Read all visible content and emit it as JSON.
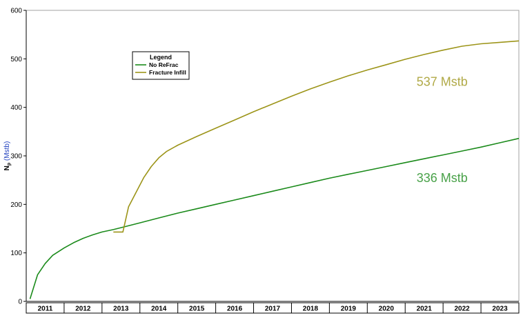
{
  "chart_data": {
    "type": "line",
    "ylabel": {
      "main": "N",
      "sub": "p",
      "unit": "(Mstb)"
    },
    "ylim": [
      0,
      600
    ],
    "yticks": [
      0,
      100,
      200,
      300,
      400,
      500,
      600
    ],
    "xlim": [
      2011.0,
      2024.0
    ],
    "x_tick_labels": [
      "2011",
      "2012",
      "2013",
      "2014",
      "2015",
      "2016",
      "2017",
      "2018",
      "2019",
      "2020",
      "2021",
      "2022",
      "2023"
    ],
    "x_tick_centers": [
      2011.5,
      2012.5,
      2013.5,
      2014.5,
      2015.5,
      2016.5,
      2017.5,
      2018.5,
      2019.5,
      2020.5,
      2021.5,
      2022.5,
      2023.5
    ],
    "grid": false,
    "legend": {
      "title": "Legend",
      "placement": "upper-left"
    },
    "series": [
      {
        "name": "No ReFrac",
        "color": "#1a8a1a",
        "x": [
          2011.1,
          2011.2,
          2011.3,
          2011.5,
          2011.7,
          2012.0,
          2012.25,
          2012.5,
          2012.75,
          2013.0,
          2013.3,
          2013.5,
          2014.0,
          2014.5,
          2015.0,
          2015.5,
          2016.0,
          2016.5,
          2017.0,
          2017.5,
          2018.0,
          2018.5,
          2019.0,
          2019.5,
          2020.0,
          2020.5,
          2021.0,
          2021.5,
          2022.0,
          2022.5,
          2023.0,
          2023.5,
          2024.0
        ],
        "y": [
          5,
          30,
          55,
          78,
          95,
          110,
          121,
          130,
          137,
          143,
          148,
          152,
          162,
          172,
          182,
          191,
          200,
          209,
          218,
          227,
          236,
          245,
          254,
          262,
          270,
          278,
          286,
          294,
          302,
          310,
          318,
          327,
          336
        ]
      },
      {
        "name": "Fracture Infill",
        "color": "#9c9418",
        "x": [
          2013.3,
          2013.4,
          2013.55,
          2013.7,
          2013.9,
          2014.1,
          2014.3,
          2014.5,
          2014.7,
          2015.0,
          2015.5,
          2016.0,
          2016.5,
          2017.0,
          2017.5,
          2018.0,
          2018.5,
          2019.0,
          2019.5,
          2020.0,
          2020.5,
          2021.0,
          2021.5,
          2022.0,
          2022.5,
          2023.0,
          2023.5,
          2024.0
        ],
        "y": [
          143,
          143,
          143,
          195,
          225,
          255,
          278,
          296,
          309,
          322,
          340,
          357,
          374,
          391,
          407,
          423,
          438,
          452,
          465,
          477,
          488,
          499,
          509,
          518,
          526,
          531,
          534,
          537
        ]
      }
    ],
    "annotations": [
      {
        "text": "537 Mstb",
        "series_index": 1,
        "x": 2021.3,
        "y": 444
      },
      {
        "text": "336 Mstb",
        "series_index": 0,
        "x": 2021.3,
        "y": 246
      }
    ]
  }
}
